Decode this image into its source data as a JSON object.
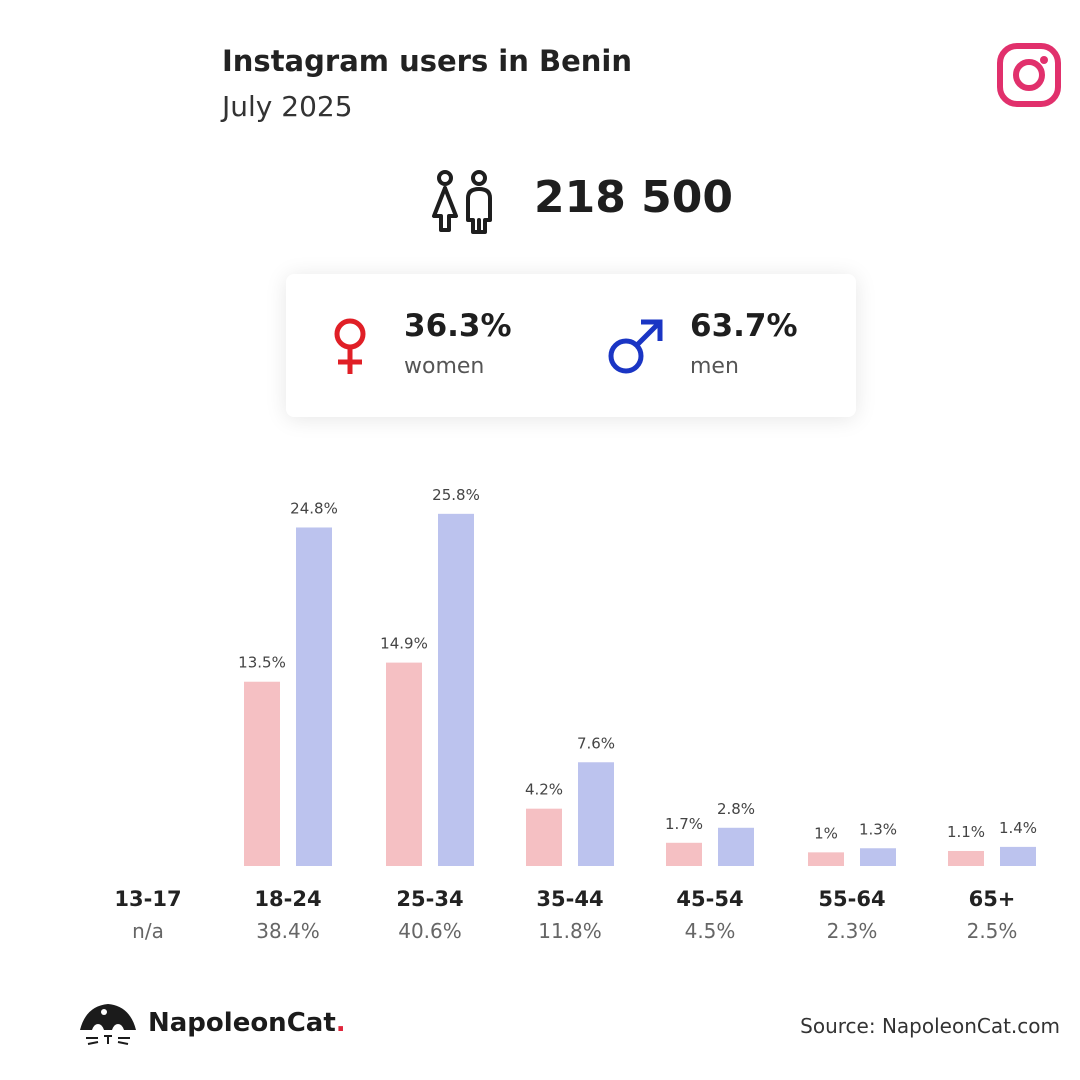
{
  "header": {
    "title": "Instagram users in Benin",
    "subtitle": "July 2025",
    "flag_colors": {
      "green": "#008751",
      "yellow": "#FCD116",
      "red": "#E8112D"
    },
    "logo_icon": "instagram-icon",
    "logo_color": "#E1306C"
  },
  "total": {
    "icon": "users-icon",
    "value": "218 500"
  },
  "gender": {
    "women": {
      "icon": "female-icon",
      "percent": "36.3%",
      "label": "women",
      "color": "#E01F26"
    },
    "men": {
      "icon": "male-icon",
      "percent": "63.7%",
      "label": "men",
      "color": "#1A35C4"
    }
  },
  "chart_data": {
    "type": "bar",
    "categories": [
      "13-17",
      "18-24",
      "25-34",
      "35-44",
      "45-54",
      "55-64",
      "65+"
    ],
    "group_totals": [
      "n/a",
      "38.4%",
      "40.6%",
      "11.8%",
      "4.5%",
      "2.3%",
      "2.5%"
    ],
    "series": [
      {
        "values": [
          null,
          13.5,
          14.9,
          4.2,
          1.7,
          1.0,
          1.1
        ],
        "labels": [
          "",
          "13.5%",
          "14.9%",
          "4.2%",
          "1.7%",
          "1%",
          "1.1%"
        ],
        "color": "#F5C0C3"
      },
      {
        "values": [
          null,
          24.8,
          25.8,
          7.6,
          2.8,
          1.3,
          1.4
        ],
        "labels": [
          "",
          "24.8%",
          "25.8%",
          "7.6%",
          "2.8%",
          "1.3%",
          "1.4%"
        ],
        "color": "#BCC3EE"
      }
    ],
    "grid": false,
    "legend": "none"
  },
  "footer": {
    "brand_icon": "napoleoncat-logo-icon",
    "brand_name": "NapoleonCat",
    "brand_dot": ".",
    "source": "Source: NapoleonCat.com"
  }
}
